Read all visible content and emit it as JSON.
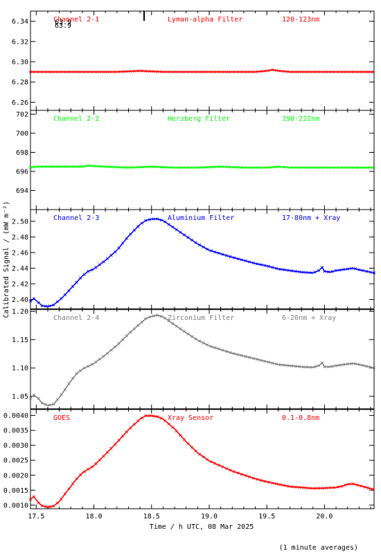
{
  "chart_data": {
    "type": "line",
    "xlabel": "Time / h UTC, 08 Mar 2025",
    "ylabel": "Calibrated Signal / (mW m⁻²)",
    "footnote": "(1 minute averages)",
    "xlim": [
      17.45,
      20.43
    ],
    "xticks": [
      17.5,
      18.0,
      18.5,
      19.0,
      19.5,
      20.0
    ],
    "xtick_labels": [
      "17.5",
      "18.0",
      "18.5",
      "19.0",
      "19.5",
      "20.0"
    ],
    "panels": [
      {
        "channel": "Channel 2-1",
        "filter": "Lyman-alpha Filter",
        "band": "120-123nm",
        "color": "#ff0000",
        "ylim": [
          6.252,
          6.35
        ],
        "yticks": [
          6.26,
          6.28,
          6.3,
          6.32,
          6.34
        ],
        "ytick_labels": [
          "6.26",
          "6.28",
          "6.30",
          "6.32",
          "6.34"
        ],
        "inset_text": [
          "63.9",
          "63.9"
        ],
        "series": {
          "x": [
            17.45,
            17.6,
            17.8,
            18.0,
            18.2,
            18.4,
            18.6,
            18.8,
            19.0,
            19.2,
            19.4,
            19.5,
            19.55,
            19.6,
            19.7,
            19.9,
            20.1,
            20.3,
            20.43
          ],
          "values": [
            6.29,
            6.29,
            6.29,
            6.29,
            6.29,
            6.291,
            6.29,
            6.29,
            6.29,
            6.29,
            6.29,
            6.291,
            6.292,
            6.291,
            6.29,
            6.29,
            6.29,
            6.29,
            6.29
          ]
        }
      },
      {
        "channel": "Channel 2-2",
        "filter": "Herzberg Filter",
        "band": "190-222nm",
        "color": "#00ff00",
        "ylim": [
          692.0,
          702.4
        ],
        "yticks": [
          694,
          696,
          698,
          700,
          702
        ],
        "ytick_labels": [
          "694",
          "696",
          "698",
          "700",
          "702"
        ],
        "series": {
          "x": [
            17.45,
            17.5,
            17.6,
            17.8,
            17.9,
            17.95,
            18.1,
            18.3,
            18.5,
            18.7,
            18.9,
            19.1,
            19.3,
            19.5,
            19.6,
            19.7,
            19.9,
            20.1,
            20.3,
            20.43
          ],
          "values": [
            696.4,
            696.5,
            696.5,
            696.5,
            696.5,
            696.6,
            696.5,
            696.4,
            696.5,
            696.4,
            696.4,
            696.5,
            696.4,
            696.4,
            696.5,
            696.4,
            696.4,
            696.4,
            696.4,
            696.4
          ]
        }
      },
      {
        "channel": "Channel 2-3",
        "filter": "Aluminium Filter",
        "band": "17-80nm + Xray",
        "color": "#0000ff",
        "ylim": [
          2.388,
          2.515
        ],
        "yticks": [
          2.4,
          2.42,
          2.44,
          2.46,
          2.48,
          2.5
        ],
        "ytick_labels": [
          "2.40",
          "2.42",
          "2.44",
          "2.46",
          "2.48",
          "2.50"
        ],
        "series": {
          "x": [
            17.45,
            17.48,
            17.52,
            17.55,
            17.6,
            17.65,
            17.7,
            17.75,
            17.8,
            17.85,
            17.9,
            17.95,
            18.0,
            18.1,
            18.2,
            18.3,
            18.4,
            18.45,
            18.5,
            18.55,
            18.6,
            18.7,
            18.8,
            18.9,
            19.0,
            19.2,
            19.4,
            19.5,
            19.6,
            19.7,
            19.8,
            19.9,
            19.95,
            19.98,
            20.0,
            20.05,
            20.1,
            20.2,
            20.25,
            20.3,
            20.43
          ],
          "values": [
            2.398,
            2.401,
            2.396,
            2.392,
            2.391,
            2.393,
            2.399,
            2.406,
            2.414,
            2.422,
            2.43,
            2.436,
            2.439,
            2.45,
            2.463,
            2.481,
            2.496,
            2.501,
            2.503,
            2.503,
            2.501,
            2.491,
            2.481,
            2.471,
            2.463,
            2.454,
            2.446,
            2.443,
            2.439,
            2.437,
            2.435,
            2.434,
            2.437,
            2.441,
            2.436,
            2.435,
            2.437,
            2.439,
            2.44,
            2.438,
            2.434
          ]
        }
      },
      {
        "channel": "Channel 2-4",
        "filter": "Zirconium Filter",
        "band": "6-20nm + Xray",
        "color": "#7f7f7f",
        "ylim": [
          1.028,
          1.203
        ],
        "yticks": [
          1.05,
          1.1,
          1.15,
          1.2
        ],
        "ytick_labels": [
          "1.05",
          "1.10",
          "1.15",
          "1.20"
        ],
        "series": {
          "x": [
            17.45,
            17.48,
            17.52,
            17.55,
            17.6,
            17.65,
            17.7,
            17.75,
            17.8,
            17.85,
            17.9,
            17.95,
            18.0,
            18.1,
            18.2,
            18.3,
            18.4,
            18.45,
            18.5,
            18.55,
            18.6,
            18.7,
            18.8,
            18.9,
            19.0,
            19.2,
            19.4,
            19.5,
            19.6,
            19.7,
            19.8,
            19.9,
            19.95,
            19.98,
            20.0,
            20.05,
            20.1,
            20.2,
            20.25,
            20.3,
            20.43
          ],
          "values": [
            1.047,
            1.052,
            1.046,
            1.038,
            1.034,
            1.036,
            1.048,
            1.062,
            1.077,
            1.09,
            1.098,
            1.103,
            1.108,
            1.123,
            1.14,
            1.16,
            1.178,
            1.187,
            1.191,
            1.193,
            1.19,
            1.176,
            1.162,
            1.149,
            1.139,
            1.126,
            1.116,
            1.111,
            1.106,
            1.104,
            1.102,
            1.101,
            1.104,
            1.109,
            1.102,
            1.102,
            1.104,
            1.107,
            1.108,
            1.106,
            1.1
          ]
        }
      },
      {
        "channel": "GOES",
        "filter": "Xray Sensor",
        "band": "0.1-0.8nm",
        "color": "#ff0000",
        "ylim": [
          0.00088,
          0.0042
        ],
        "yticks": [
          0.001,
          0.0015,
          0.002,
          0.0025,
          0.003,
          0.0035,
          0.004
        ],
        "ytick_labels": [
          "0.0010",
          "0.0015",
          "0.0020",
          "0.0025",
          "0.0030",
          "0.0035",
          "0.0040"
        ],
        "series": {
          "x": [
            17.45,
            17.48,
            17.52,
            17.55,
            17.6,
            17.65,
            17.7,
            17.75,
            17.8,
            17.85,
            17.9,
            17.95,
            18.0,
            18.1,
            18.2,
            18.3,
            18.4,
            18.45,
            18.5,
            18.55,
            18.6,
            18.7,
            18.8,
            18.9,
            19.0,
            19.2,
            19.4,
            19.5,
            19.6,
            19.7,
            19.8,
            19.9,
            20.0,
            20.1,
            20.15,
            20.2,
            20.25,
            20.3,
            20.43
          ],
          "values": [
            0.0012,
            0.00128,
            0.00108,
            0.00098,
            0.00093,
            0.00097,
            0.00112,
            0.00138,
            0.00163,
            0.00188,
            0.00208,
            0.0022,
            0.00232,
            0.0027,
            0.0031,
            0.00352,
            0.00388,
            0.00399,
            0.00399,
            0.00396,
            0.00388,
            0.00355,
            0.00312,
            0.00275,
            0.00248,
            0.00214,
            0.00188,
            0.00178,
            0.0017,
            0.00162,
            0.00159,
            0.00156,
            0.00157,
            0.00159,
            0.00163,
            0.0017,
            0.00171,
            0.00166,
            0.00152
          ]
        }
      }
    ]
  }
}
